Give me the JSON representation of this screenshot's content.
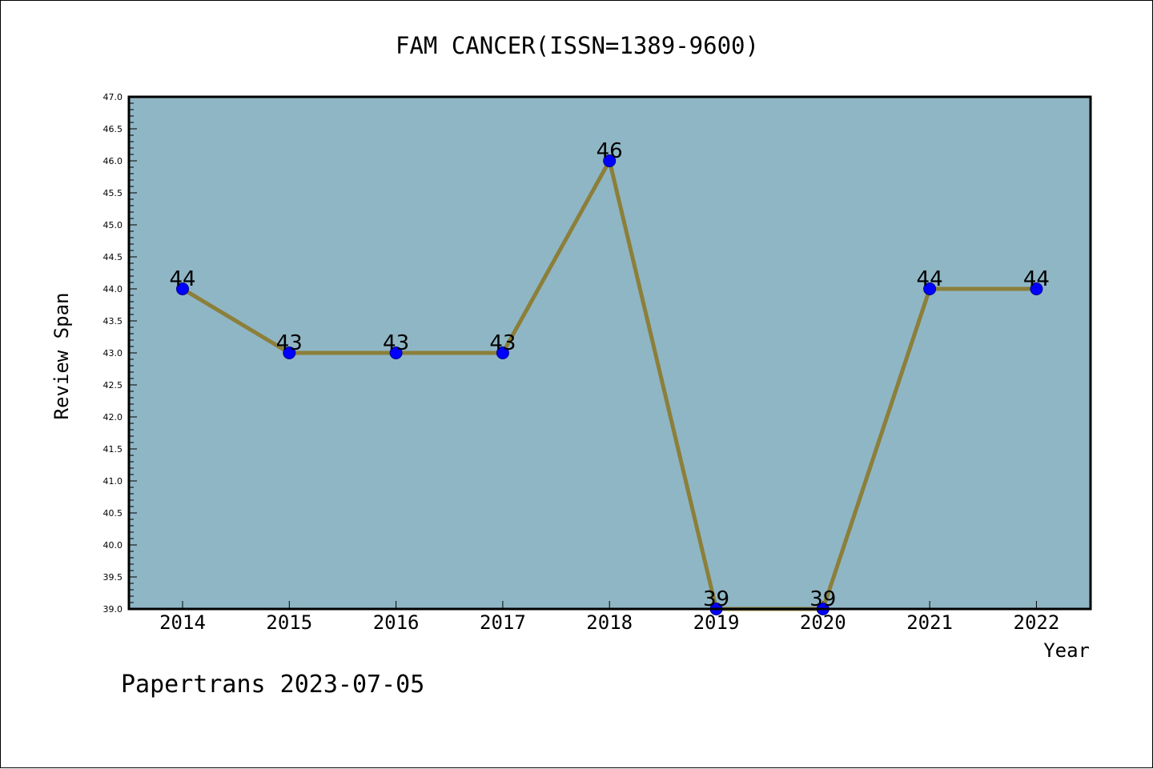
{
  "chart_data": {
    "type": "line",
    "title": "FAM CANCER(ISSN=1389-9600)",
    "xlabel": "Year",
    "ylabel": "Review Span",
    "footer": "Papertrans 2023-07-05",
    "x": [
      "2014",
      "2015",
      "2016",
      "2017",
      "2018",
      "2019",
      "2020",
      "2021",
      "2022"
    ],
    "series": [
      {
        "values": [
          44,
          43,
          43,
          43,
          46,
          39,
          39,
          44,
          44
        ]
      }
    ],
    "data_labels": [
      "44",
      "43",
      "43",
      "43",
      "46",
      "39",
      "39",
      "44",
      "44"
    ],
    "ylim": [
      39.0,
      47.0
    ],
    "yticks": [
      "39.0",
      "39.5",
      "40.0",
      "40.5",
      "41.0",
      "41.5",
      "42.0",
      "42.5",
      "43.0",
      "43.5",
      "44.0",
      "44.5",
      "45.0",
      "45.5",
      "46.0",
      "46.5",
      "47.0"
    ],
    "grid": false,
    "colors": {
      "plot_background": "#8fb6c5",
      "line": "#8b7f3a",
      "marker": "#0000ff",
      "axis": "#000000"
    }
  }
}
